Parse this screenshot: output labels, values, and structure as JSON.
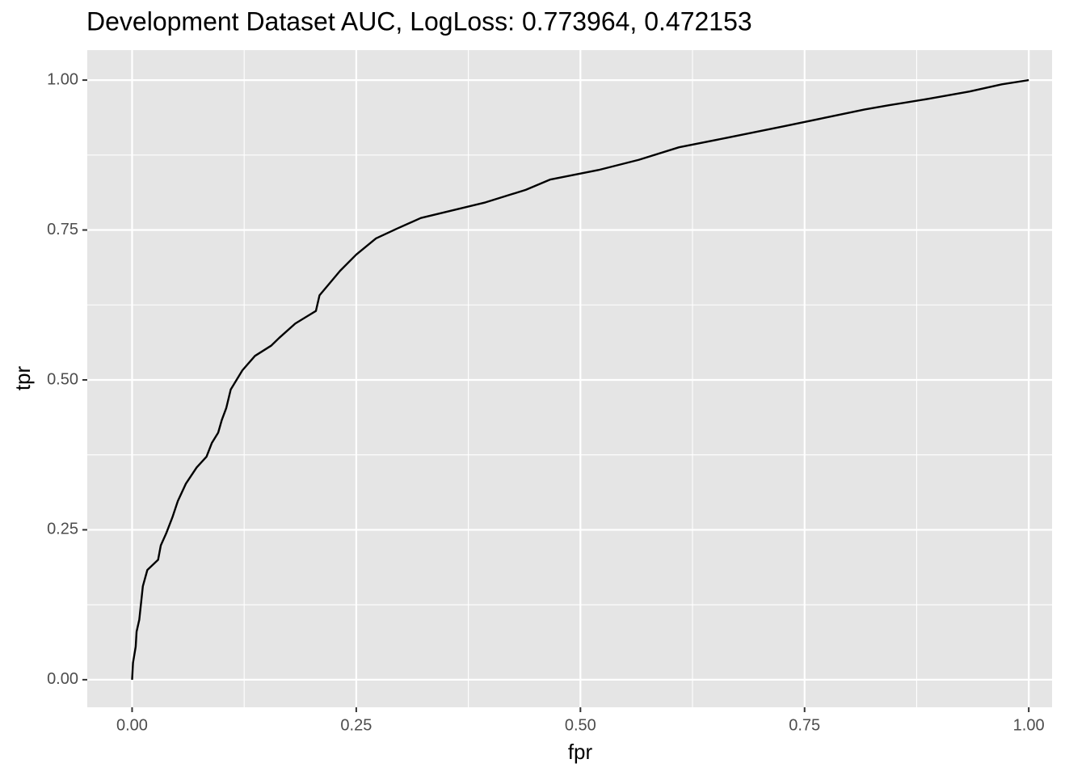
{
  "chart_data": {
    "type": "line",
    "title": "Development Dataset AUC, LogLoss: 0.773964, 0.472153",
    "x_label": "fpr",
    "y_label": "tpr",
    "x": [
      0,
      0.001,
      0.004,
      0.005,
      0.008,
      0.012,
      0.017,
      0.029,
      0.032,
      0.038,
      0.045,
      0.051,
      0.06,
      0.072,
      0.083,
      0.089,
      0.096,
      0.1,
      0.105,
      0.11,
      0.123,
      0.137,
      0.155,
      0.164,
      0.182,
      0.205,
      0.209,
      0.232,
      0.25,
      0.272,
      0.295,
      0.322,
      0.358,
      0.394,
      0.439,
      0.466,
      0.52,
      0.565,
      0.61,
      0.664,
      0.727,
      0.772,
      0.817,
      0.844,
      0.889,
      0.934,
      0.97,
      1
    ],
    "series": [
      {
        "name": "tpr",
        "color": "#000000",
        "values": [
          0,
          0.028,
          0.055,
          0.08,
          0.1,
          0.156,
          0.183,
          0.2,
          0.224,
          0.244,
          0.271,
          0.298,
          0.327,
          0.354,
          0.372,
          0.395,
          0.412,
          0.433,
          0.453,
          0.484,
          0.516,
          0.54,
          0.557,
          0.57,
          0.594,
          0.615,
          0.641,
          0.682,
          0.709,
          0.736,
          0.752,
          0.77,
          0.783,
          0.796,
          0.817,
          0.834,
          0.85,
          0.867,
          0.888,
          0.904,
          0.923,
          0.937,
          0.951,
          0.958,
          0.969,
          0.981,
          0.993,
          1
        ]
      }
    ],
    "xlim": [
      -0.05,
      1.026
    ],
    "ylim": [
      -0.046,
      1.05
    ],
    "xticks": [
      {
        "value": 0,
        "label": "0.00"
      },
      0.25,
      {
        "value": 0.5,
        "label": "0.50"
      },
      0.75,
      {
        "value": 1,
        "label": "1.00"
      }
    ],
    "yticks": [
      {
        "value": 0,
        "label": "0.00"
      },
      0.25,
      {
        "value": 0.5,
        "label": "0.50"
      },
      0.75,
      {
        "value": 1,
        "label": "1.00"
      }
    ],
    "grid": true
  }
}
